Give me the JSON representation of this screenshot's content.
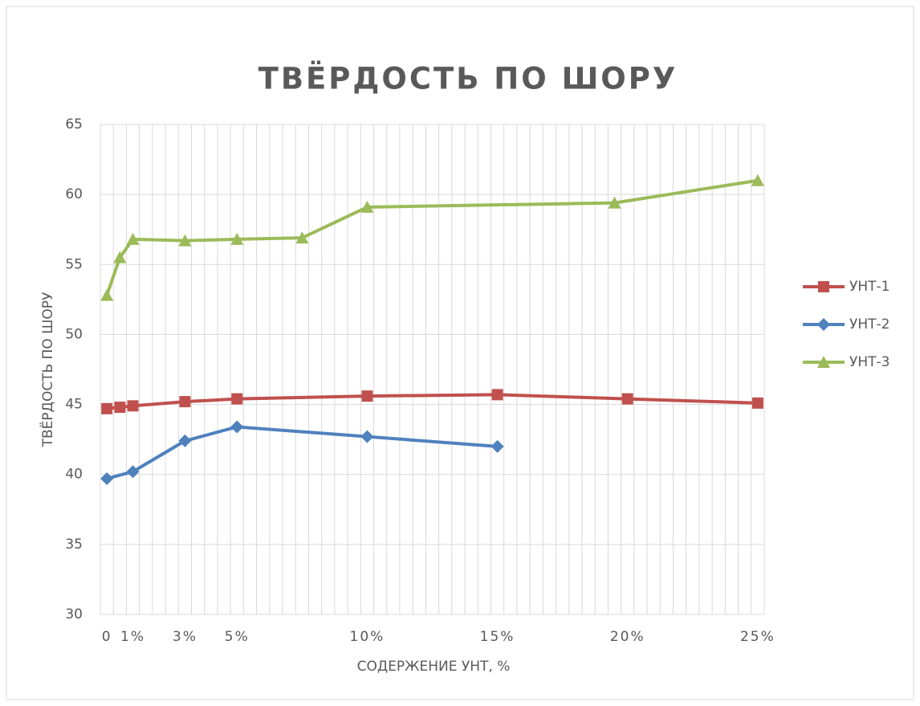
{
  "chart_data": {
    "type": "line",
    "title": "ТВЁРДОСТЬ ПО ШОРУ",
    "xlabel": "СОДЕРЖЕНИЕ УНТ, %",
    "ylabel": "ТВЁРДОСТЬ ПО ШОРУ",
    "xlim": [
      -0.25,
      25.25
    ],
    "xticks": [
      {
        "value": 0,
        "label": "0"
      },
      {
        "value": 1,
        "label": "1%"
      },
      {
        "value": 3,
        "label": "3%"
      },
      {
        "value": 5,
        "label": "5%"
      },
      {
        "value": 10,
        "label": "10%"
      },
      {
        "value": 15,
        "label": "15%"
      },
      {
        "value": 20,
        "label": "20%"
      },
      {
        "value": 25,
        "label": "25%"
      }
    ],
    "x_grid_step": 0.5,
    "ylim": [
      30,
      65
    ],
    "yticks": [
      30,
      35,
      40,
      45,
      50,
      55,
      60,
      65
    ],
    "grid": true,
    "legend": "right",
    "series": [
      {
        "name": "УНТ-1",
        "color": "#c0504d",
        "marker": "square",
        "x": [
          0,
          0.5,
          1,
          3,
          5,
          10,
          15,
          20,
          25
        ],
        "values": [
          44.7,
          44.8,
          44.9,
          45.2,
          45.4,
          45.6,
          45.7,
          45.4,
          45.1
        ]
      },
      {
        "name": "УНТ-2",
        "color": "#4f81bd",
        "marker": "diamond",
        "x": [
          0,
          1,
          3,
          5,
          10,
          15
        ],
        "values": [
          39.7,
          40.2,
          42.4,
          43.4,
          42.7,
          42.0
        ]
      },
      {
        "name": "УНТ-3",
        "color": "#9bbb59",
        "marker": "triangle",
        "x": [
          0,
          0.5,
          1,
          3,
          5,
          7.5,
          10,
          19.5,
          25
        ],
        "values": [
          52.8,
          55.5,
          56.8,
          56.7,
          56.8,
          56.9,
          59.1,
          59.4,
          61.0
        ]
      }
    ]
  }
}
